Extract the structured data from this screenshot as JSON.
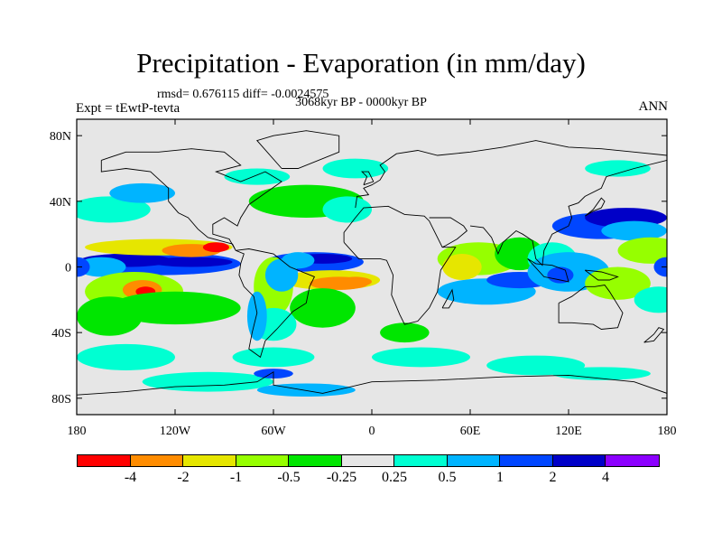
{
  "header": {
    "title": "Precipitation - Evaporation (in mm/day)",
    "subtitle": "rmsd= 0.676115 diff= -0.0024575",
    "left_label": "Expt = tEwtP-tevta",
    "center_label": "3068kyr BP - 0000kyr BP",
    "right_label": "ANN"
  },
  "map": {
    "projection": "cylindrical equidistant",
    "lon_range": [
      -180,
      180
    ],
    "lat_range": [
      -90,
      90
    ],
    "background_color": "#e6e6e6",
    "lat_ticks": [
      {
        "value": 80,
        "label": "80N"
      },
      {
        "value": 40,
        "label": "40N"
      },
      {
        "value": 0,
        "label": "0"
      },
      {
        "value": -40,
        "label": "40S"
      },
      {
        "value": -80,
        "label": "80S"
      }
    ],
    "lon_ticks": [
      {
        "value": -180,
        "label": "180"
      },
      {
        "value": -120,
        "label": "120W"
      },
      {
        "value": -60,
        "label": "60W"
      },
      {
        "value": 0,
        "label": "0"
      },
      {
        "value": 60,
        "label": "60E"
      },
      {
        "value": 120,
        "label": "120E"
      },
      {
        "value": 180,
        "label": "180"
      }
    ]
  },
  "colorbar": {
    "colors": [
      "#ff0000",
      "#ff8c00",
      "#e6e600",
      "#96ff00",
      "#00e600",
      "#e6e6e6",
      "#00ffd2",
      "#00b4ff",
      "#0046ff",
      "#0000c8",
      "#8c00ff"
    ],
    "labels": [
      "-4",
      "-2",
      "-1",
      "-0.5",
      "-0.25",
      "0.25",
      "0.5",
      "1",
      "2",
      "4"
    ]
  }
}
